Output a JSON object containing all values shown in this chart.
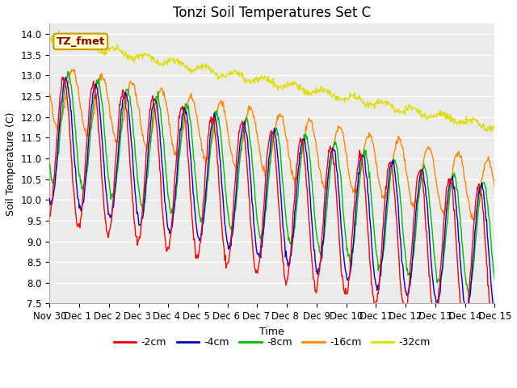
{
  "title": "Tonzi Soil Temperatures Set C",
  "xlabel": "Time",
  "ylabel": "Soil Temperature (C)",
  "ylim": [
    7.5,
    14.25
  ],
  "yticks": [
    7.5,
    8.0,
    8.5,
    9.0,
    9.5,
    10.0,
    10.5,
    11.0,
    11.5,
    12.0,
    12.5,
    13.0,
    13.5,
    14.0
  ],
  "xtick_labels": [
    "Nov 30",
    "Dec 1 ",
    "Dec 2 ",
    "Dec 3 ",
    "Dec 4 ",
    "Dec 5 ",
    "Dec 6 ",
    "Dec 7 ",
    "Dec 8 ",
    "Dec 9",
    "Dec 10",
    "Dec 11",
    "Dec 12",
    "Dec 13",
    "Dec 14",
    "Dec 15"
  ],
  "legend_labels": [
    "-2cm",
    "-4cm",
    "-8cm",
    "-16cm",
    "-32cm"
  ],
  "legend_colors": [
    "#ff0000",
    "#0000cc",
    "#00bb00",
    "#ff8800",
    "#dddd00"
  ],
  "annotation_text": "TZ_fmet",
  "annotation_bg": "#ffffcc",
  "annotation_border": "#cc9900",
  "annotation_text_color": "#880000",
  "plot_bg": "#ebebeb",
  "title_fontsize": 12,
  "axis_fontsize": 9,
  "tick_fontsize": 8.5,
  "legend_fontsize": 9,
  "n_points": 720,
  "days": 15,
  "line_width": 1.0,
  "trend_2cm": [
    11.3,
    8.5
  ],
  "trend_4cm": [
    11.5,
    8.7
  ],
  "trend_8cm": [
    11.8,
    9.0
  ],
  "trend_16cm": [
    12.5,
    10.2
  ],
  "trend_32cm": [
    13.9,
    11.75
  ],
  "amp_2cm": 1.75,
  "amp_4cm": 1.55,
  "amp_8cm": 1.35,
  "amp_16cm": 0.75,
  "amp_32cm": 0.08,
  "phase_2cm": -0.45,
  "phase_4cm": -0.6,
  "phase_8cm": -0.75,
  "phase_16cm": -1.05,
  "phase_32cm": 0.0,
  "noise_2cm": 0.06,
  "noise_4cm": 0.05,
  "noise_8cm": 0.05,
  "noise_16cm": 0.045,
  "noise_32cm": 0.04
}
